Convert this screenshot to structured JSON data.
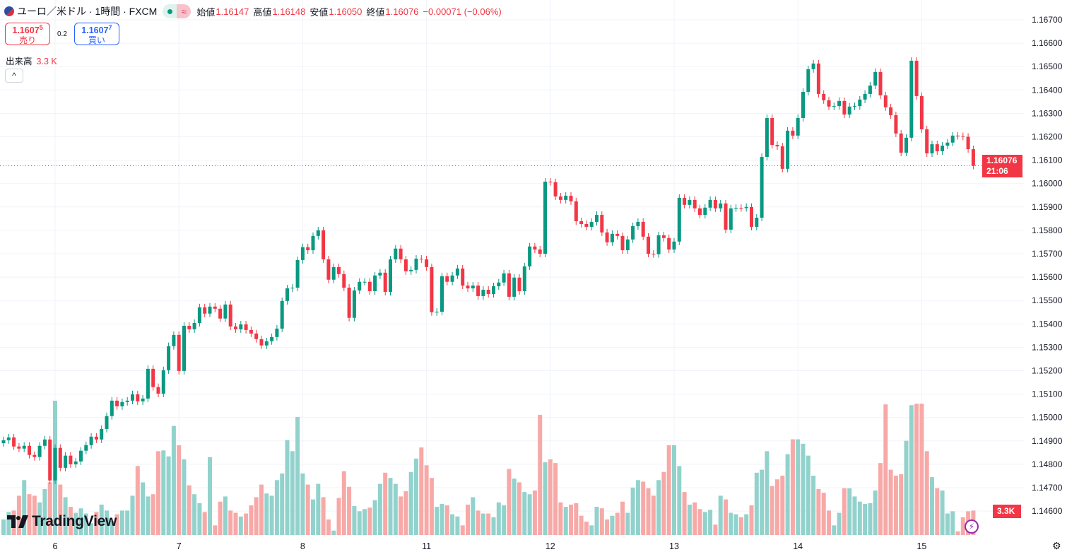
{
  "header": {
    "symbol": "ユーロ／米ドル · 1時間 · FXCM",
    "status_icon": "market-open-dot",
    "approx_icon": "≈",
    "ohlc": [
      {
        "label": "始値",
        "value": "1.16147"
      },
      {
        "label": "高値",
        "value": "1.16148"
      },
      {
        "label": "安値",
        "value": "1.16050"
      },
      {
        "label": "終値",
        "value": "1.16076"
      }
    ],
    "change": "−0.00071 (−0.06%)"
  },
  "trade": {
    "sell_price": "1.1607",
    "sell_sup": "5",
    "sell_label": "売り",
    "spread": "0.2",
    "buy_price": "1.1607",
    "buy_sup": "7",
    "buy_label": "買い"
  },
  "volume_legend": {
    "label": "出来高",
    "value": "3.3 K"
  },
  "collapse_icon": "^",
  "logo": "TradingView",
  "price_tag": {
    "price": "1.16076",
    "countdown": "21:06"
  },
  "volume_tag": "3.3K",
  "colors": {
    "up": "#089981",
    "down": "#f23645",
    "up_volume": "#92d2cc",
    "down_volume": "#f7a9a7",
    "grid": "#f0f3fa"
  },
  "chart_data": {
    "type": "candlestick",
    "interval": "1時間",
    "price_axis": {
      "ticks": [
        "1.16700",
        "1.16600",
        "1.16500",
        "1.16400",
        "1.16300",
        "1.16200",
        "1.16100",
        "1.16000",
        "1.15900",
        "1.15800",
        "1.15700",
        "1.15600",
        "1.15500",
        "1.15400",
        "1.15300",
        "1.15200",
        "1.15100",
        "1.15000",
        "1.14900",
        "1.14800",
        "1.14700",
        "1.14600"
      ],
      "range": [
        1.1459,
        1.1675
      ]
    },
    "time_axis": {
      "labels": [
        {
          "text": "6",
          "bar": 10
        },
        {
          "text": "7",
          "bar": 34
        },
        {
          "text": "8",
          "bar": 58
        },
        {
          "text": "11",
          "bar": 82
        },
        {
          "text": "12",
          "bar": 106
        },
        {
          "text": "13",
          "bar": 130
        },
        {
          "text": "14",
          "bar": 154
        },
        {
          "text": "15",
          "bar": 178
        }
      ]
    },
    "first_open": 1.1489,
    "close": [
      1.14903,
      1.14915,
      1.14876,
      1.14867,
      1.14879,
      1.1484,
      1.14831,
      1.14879,
      1.14906,
      1.14731,
      1.1487,
      1.14785,
      1.14837,
      1.148,
      1.14812,
      1.14858,
      1.14882,
      1.14918,
      1.14906,
      1.14951,
      1.15006,
      1.15072,
      1.15048,
      1.15066,
      1.15072,
      1.15099,
      1.15069,
      1.15081,
      1.15208,
      1.1513,
      1.15102,
      1.15202,
      1.15305,
      1.15353,
      1.15199,
      1.15392,
      1.15377,
      1.15404,
      1.15471,
      1.15444,
      1.15474,
      1.15465,
      1.15423,
      1.15483,
      1.15389,
      1.15377,
      1.15398,
      1.15374,
      1.15359,
      1.15335,
      1.15308,
      1.15326,
      1.15344,
      1.1538,
      1.15498,
      1.15552,
      1.15555,
      1.15673,
      1.15728,
      1.15715,
      1.15776,
      1.158,
      1.15676,
      1.15589,
      1.15643,
      1.15613,
      1.15555,
      1.15426,
      1.15543,
      1.1558,
      1.1558,
      1.1554,
      1.15607,
      1.15619,
      1.15537,
      1.15676,
      1.15722,
      1.15676,
      1.15625,
      1.15631,
      1.15679,
      1.15676,
      1.15643,
      1.1545,
      1.15452,
      1.15604,
      1.1558,
      1.15607,
      1.15637,
      1.15564,
      1.15552,
      1.15564,
      1.15519,
      1.15546,
      1.15528,
      1.15561,
      1.15577,
      1.15616,
      1.15516,
      1.15598,
      1.1554,
      1.15646,
      1.15731,
      1.15718,
      1.157,
      1.16008,
      1.16006,
      1.15945,
      1.1593,
      1.15948,
      1.15924,
      1.15839,
      1.15827,
      1.15815,
      1.15836,
      1.15866,
      1.15791,
      1.15749,
      1.15785,
      1.15776,
      1.15715,
      1.15761,
      1.15818,
      1.15836,
      1.15773,
      1.157,
      1.15698,
      1.15779,
      1.15767,
      1.15718,
      1.15752,
      1.15939,
      1.15909,
      1.1593,
      1.15894,
      1.15866,
      1.15897,
      1.1593,
      1.15894,
      1.15915,
      1.15803,
      1.15894,
      1.15896,
      1.15895,
      1.159,
      1.15815,
      1.15854,
      1.16114,
      1.1628,
      1.16165,
      1.16159,
      1.16063,
      1.16226,
      1.16205,
      1.1628,
      1.16392,
      1.16489,
      1.16513,
      1.16383,
      1.16356,
      1.16329,
      1.16331,
      1.16353,
      1.16295,
      1.16329,
      1.16331,
      1.16359,
      1.16383,
      1.16419,
      1.16477,
      1.16377,
      1.16326,
      1.16292,
      1.16214,
      1.16132,
      1.16196,
      1.16525,
      1.16374,
      1.16232,
      1.16129,
      1.16168,
      1.16138,
      1.16162,
      1.16175,
      1.16205,
      1.16203,
      1.162,
      1.16147,
      1.16076
    ],
    "volume_k": [
      2.1,
      3.1,
      3.3,
      5.3,
      7.4,
      5.5,
      5.3,
      4.4,
      6.2,
      7.1,
      18.1,
      6.8,
      5.1,
      3.8,
      3.0,
      3.6,
      2.9,
      1.6,
      3.1,
      4.1,
      3.3,
      1.9,
      2.8,
      3.3,
      3.3,
      5.3,
      9.3,
      7.1,
      5.2,
      5.5,
      11.3,
      11.4,
      10.6,
      14.7,
      12.1,
      10.2,
      6.7,
      5.5,
      4.3,
      3.1,
      10.5,
      1.3,
      4.5,
      5.2,
      3.3,
      3.0,
      2.5,
      2.9,
      4.0,
      5.1,
      6.8,
      5.6,
      5.3,
      7.4,
      8.3,
      12.8,
      11.3,
      15.9,
      8.3,
      6.8,
      4.8,
      6.9,
      5.1,
      2.1,
      0.6,
      5.0,
      8.6,
      6.5,
      3.9,
      3.2,
      3.5,
      3.7,
      4.7,
      6.9,
      8.4,
      7.7,
      6.9,
      5.2,
      5.9,
      8.5,
      10.3,
      11.8,
      9.4,
      7.7,
      3.8,
      4.2,
      4.0,
      2.8,
      2.5,
      1.3,
      4.1,
      5.1,
      3.3,
      2.9,
      2.9,
      2.4,
      4.4,
      4.0,
      8.9,
      7.6,
      7.1,
      5.8,
      5.5,
      6.0,
      16.2,
      9.8,
      10.2,
      9.7,
      4.4,
      3.8,
      4.1,
      4.3,
      2.6,
      1.8,
      1.3,
      3.8,
      3.6,
      2.1,
      2.6,
      3.0,
      4.5,
      3.0,
      6.4,
      7.4,
      7.2,
      6.3,
      5.3,
      7.4,
      8.5,
      12.1,
      12.1,
      9.3,
      5.8,
      4.1,
      4.4,
      3.5,
      3.1,
      3.4,
      1.4,
      5.3,
      4.8,
      3.0,
      2.8,
      2.4,
      2.8,
      4.0,
      8.4,
      8.8,
      11.3,
      6.6,
      7.5,
      8.0,
      10.9,
      12.9,
      12.9,
      12.3,
      10.7,
      8.0,
      6.2,
      5.7,
      3.3,
      1.3,
      3.0,
      6.3,
      6.3,
      5.2,
      4.5,
      4.2,
      4.3,
      6.0,
      9.7,
      17.6,
      8.8,
      8.0,
      8.2,
      12.7,
      17.5,
      17.7,
      17.7,
      11.3,
      7.8,
      6.3,
      6.0,
      2.9,
      3.2,
      0.5,
      2.4,
      3.2,
      3.3
    ],
    "last_price": 1.16076
  }
}
